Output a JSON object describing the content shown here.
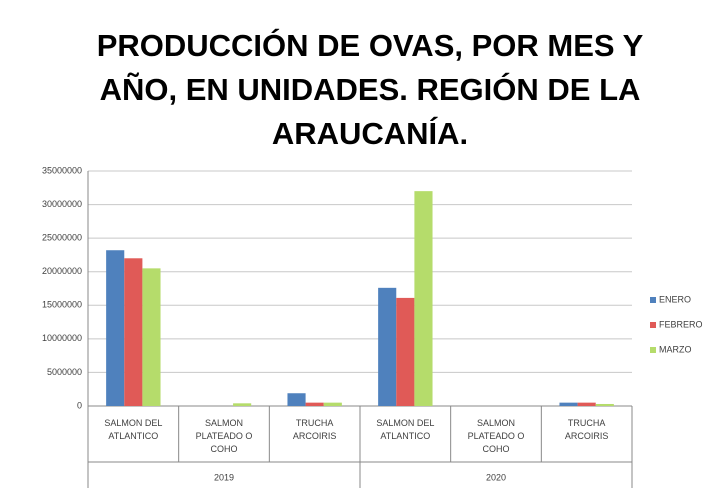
{
  "chart_data": {
    "type": "bar",
    "title": "PRODUCCIÓN DE OVAS, POR MES Y AÑO, EN UNIDADES. REGIÓN DE LA ARAUCANÍA.",
    "categories": [
      "SALMON DEL ATLANTICO",
      "SALMON PLATEADO O COHO",
      "TRUCHA ARCOIRIS",
      "SALMON DEL ATLANTICO",
      "SALMON PLATEADO O COHO",
      "TRUCHA ARCOIRIS"
    ],
    "groups": [
      "2019",
      "2020"
    ],
    "series": [
      {
        "name": "ENERO",
        "color": "#4f81bd",
        "values": [
          23200000,
          0,
          1900000,
          17600000,
          0,
          500000
        ]
      },
      {
        "name": "FEBRERO",
        "color": "#e05a57",
        "values": [
          22000000,
          0,
          500000,
          16100000,
          0,
          500000
        ]
      },
      {
        "name": "MARZO",
        "color": "#b5dc6b",
        "values": [
          20500000,
          400000,
          500000,
          32000000,
          0,
          300000
        ]
      }
    ],
    "ylim": [
      0,
      35000000
    ],
    "yticks": [
      0,
      5000000,
      10000000,
      15000000,
      20000000,
      25000000,
      30000000,
      35000000
    ],
    "grid": true,
    "legend": "right"
  }
}
